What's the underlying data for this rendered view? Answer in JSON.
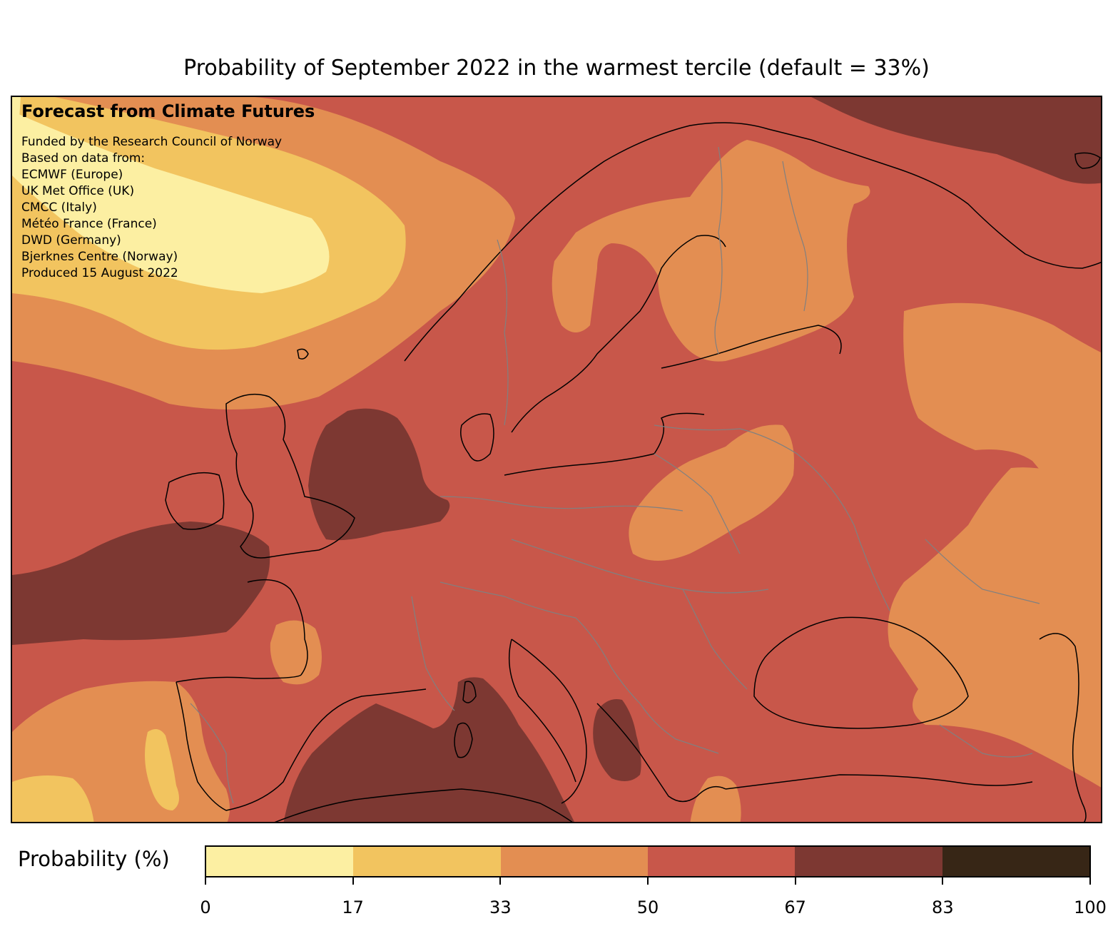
{
  "title": "Probability of September 2022 in the warmest tercile (default = 33%)",
  "info": {
    "heading": "Forecast from Climate Futures",
    "lines": [
      "Funded by the Research Council of Norway",
      "Based on data from:",
      "ECMWF (Europe)",
      "UK Met Office (UK)",
      "CMCC (Italy)",
      "Météo France (France)",
      "DWD (Germany)",
      "Bjerknes Centre (Norway)",
      "Produced 15 August 2022"
    ]
  },
  "colorbar": {
    "label": "Probability (%)",
    "ticks": [
      "0",
      "17",
      "33",
      "50",
      "67",
      "83",
      "100"
    ],
    "colors": [
      "#fcefa2",
      "#f2c45f",
      "#e38e52",
      "#c8574a",
      "#7d3832",
      "#372616"
    ]
  },
  "map": {
    "region": "Europe",
    "fill_colors": {
      "bin_0_17": "#fcefa2",
      "bin_17_33": "#f2c45f",
      "bin_33_50": "#e38e52",
      "bin_50_67": "#c8574a",
      "bin_67_83": "#7d3832",
      "bin_83_100": "#372616"
    }
  }
}
